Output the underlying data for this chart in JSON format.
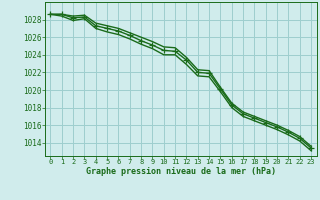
{
  "hours": [
    0,
    1,
    2,
    3,
    4,
    5,
    6,
    7,
    8,
    9,
    10,
    11,
    12,
    13,
    14,
    15,
    16,
    17,
    18,
    19,
    20,
    21,
    22,
    23
  ],
  "line_main": [
    1028.6,
    1028.6,
    1028.2,
    1028.3,
    1027.3,
    1027.0,
    1026.7,
    1026.2,
    1025.6,
    1025.1,
    1024.5,
    1024.4,
    1023.4,
    1022.0,
    1021.9,
    1020.1,
    1018.3,
    1017.3,
    1016.8,
    1016.3,
    1015.8,
    1015.2,
    1014.5,
    1013.4
  ],
  "line_upper": [
    1028.6,
    1028.6,
    1028.4,
    1028.5,
    1027.6,
    1027.3,
    1027.0,
    1026.5,
    1026.0,
    1025.5,
    1024.9,
    1024.8,
    1023.7,
    1022.3,
    1022.2,
    1020.3,
    1018.5,
    1017.5,
    1017.0,
    1016.5,
    1016.0,
    1015.4,
    1014.7,
    1013.6
  ],
  "line_lower": [
    1028.6,
    1028.4,
    1027.9,
    1028.1,
    1027.0,
    1026.6,
    1026.3,
    1025.8,
    1025.2,
    1024.7,
    1024.0,
    1024.0,
    1022.9,
    1021.6,
    1021.5,
    1019.8,
    1018.0,
    1017.0,
    1016.5,
    1016.0,
    1015.5,
    1014.9,
    1014.2,
    1013.1
  ],
  "bg_color": "#d0ecec",
  "grid_color": "#9ecece",
  "line_color": "#1a6b1a",
  "xlabel": "Graphe pression niveau de la mer (hPa)",
  "ylim_min": 1012.5,
  "ylim_max": 1030.0,
  "yticks": [
    1014,
    1016,
    1018,
    1020,
    1022,
    1024,
    1026,
    1028
  ],
  "xticks": [
    0,
    1,
    2,
    3,
    4,
    5,
    6,
    7,
    8,
    9,
    10,
    11,
    12,
    13,
    14,
    15,
    16,
    17,
    18,
    19,
    20,
    21,
    22,
    23
  ],
  "marker": "+",
  "marker_size": 4,
  "line_width": 1.0
}
